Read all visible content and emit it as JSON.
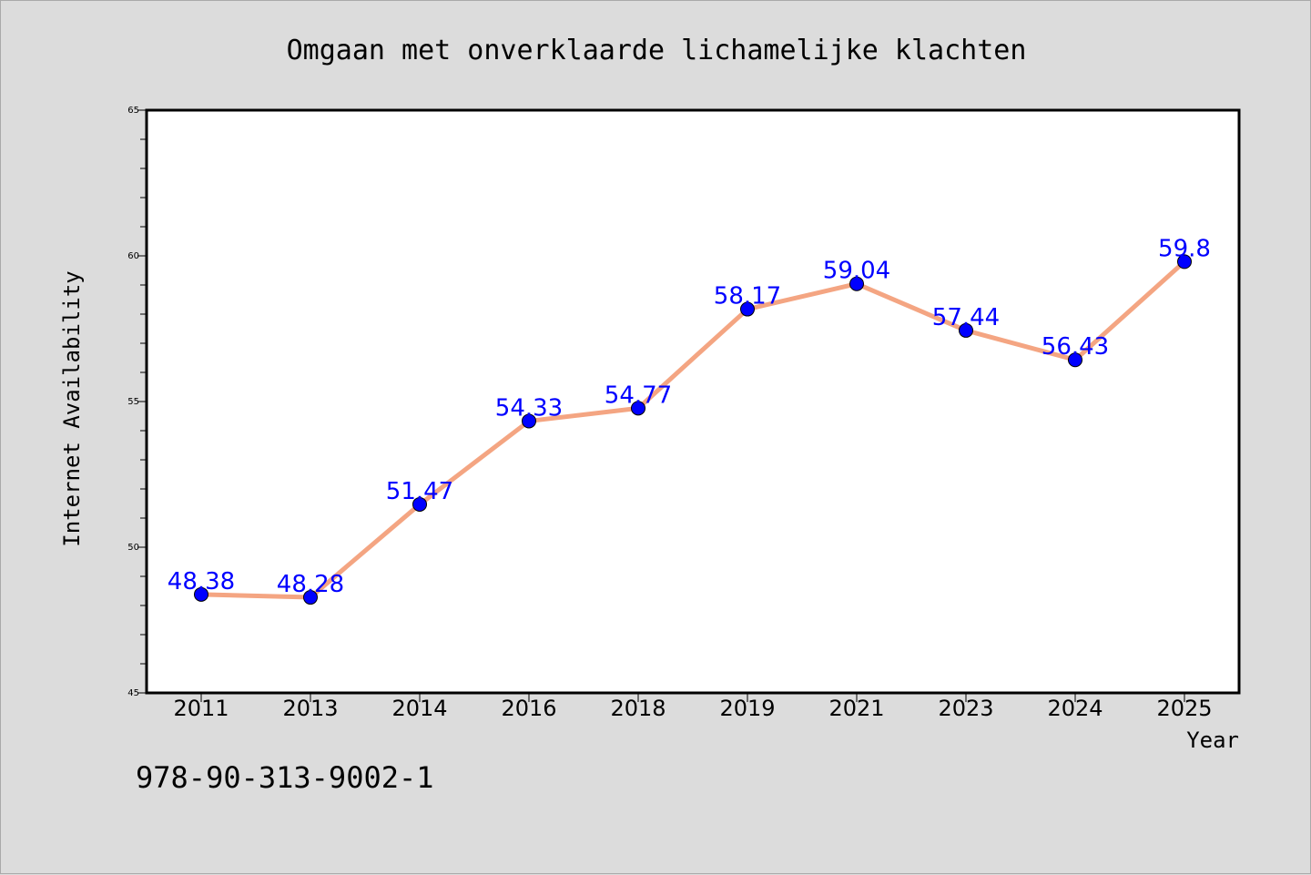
{
  "chart_data": {
    "type": "line",
    "title": "Omgaan met onverklaarde lichamelijke klachten",
    "xlabel": "Year",
    "ylabel": "Internet Availability",
    "categories": [
      "2011",
      "2013",
      "2014",
      "2016",
      "2018",
      "2019",
      "2021",
      "2023",
      "2024",
      "2025"
    ],
    "values": [
      48.38,
      48.28,
      51.47,
      54.33,
      54.77,
      58.17,
      59.04,
      57.44,
      56.43,
      59.8
    ],
    "data_labels": [
      "48.38",
      "48.28",
      "51.47",
      "54.33",
      "54.77",
      "58.17",
      "59.04",
      "57.44",
      "56.43",
      "59.8"
    ],
    "ylim": [
      45,
      65
    ],
    "yticks": [
      "45",
      "50",
      "55",
      "60",
      "65"
    ],
    "grid": false,
    "legend": "none",
    "colors": {
      "line": "#f4a582",
      "marker": "#0000ff",
      "data_label": "#0000ff",
      "background": "#dcdcdc",
      "plot_background": "#ffffff"
    }
  },
  "footer": {
    "isbn": "978-90-313-9002-1"
  }
}
